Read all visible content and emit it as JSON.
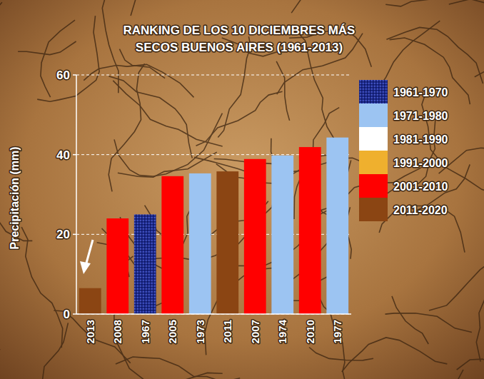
{
  "chart_data": {
    "type": "bar",
    "title": "RANKING DE LOS 10 DICIEMBRES MÁS SECOS BUENOS AIRES (1961-2013)",
    "y_label": "Precipitación (mm)",
    "categories": [
      "2013",
      "2008",
      "1967",
      "2005",
      "1973",
      "2011",
      "2007",
      "1974",
      "2010",
      "1977"
    ],
    "series": [
      {
        "name": "1961-1970",
        "color": "#1c2a8c",
        "values": [
          null,
          null,
          25,
          null,
          null,
          null,
          null,
          null,
          null,
          null
        ]
      },
      {
        "name": "1971-1980",
        "color": "#9cc4f2",
        "values": [
          null,
          null,
          null,
          null,
          35.3,
          null,
          null,
          39.8,
          null,
          44.3
        ]
      },
      {
        "name": "1981-1990",
        "color": "#ffffff",
        "values": [
          null,
          null,
          null,
          null,
          null,
          null,
          null,
          null,
          null,
          null
        ]
      },
      {
        "name": "1991-2000",
        "color": "#efb02e",
        "values": [
          null,
          null,
          null,
          null,
          null,
          null,
          null,
          null,
          null,
          null
        ]
      },
      {
        "name": "2001-2010",
        "color": "#ff0000",
        "values": [
          null,
          24,
          null,
          34.6,
          null,
          null,
          38.9,
          null,
          41.9,
          null
        ]
      },
      {
        "name": "2011-2020",
        "color": "#8b4513",
        "values": [
          6.5,
          null,
          null,
          null,
          null,
          35.8,
          null,
          null,
          null,
          null
        ]
      }
    ],
    "stacked": true,
    "ylim": [
      0,
      60
    ],
    "yticks": [
      0,
      20,
      40,
      60
    ],
    "grid": true,
    "legend": "right"
  }
}
